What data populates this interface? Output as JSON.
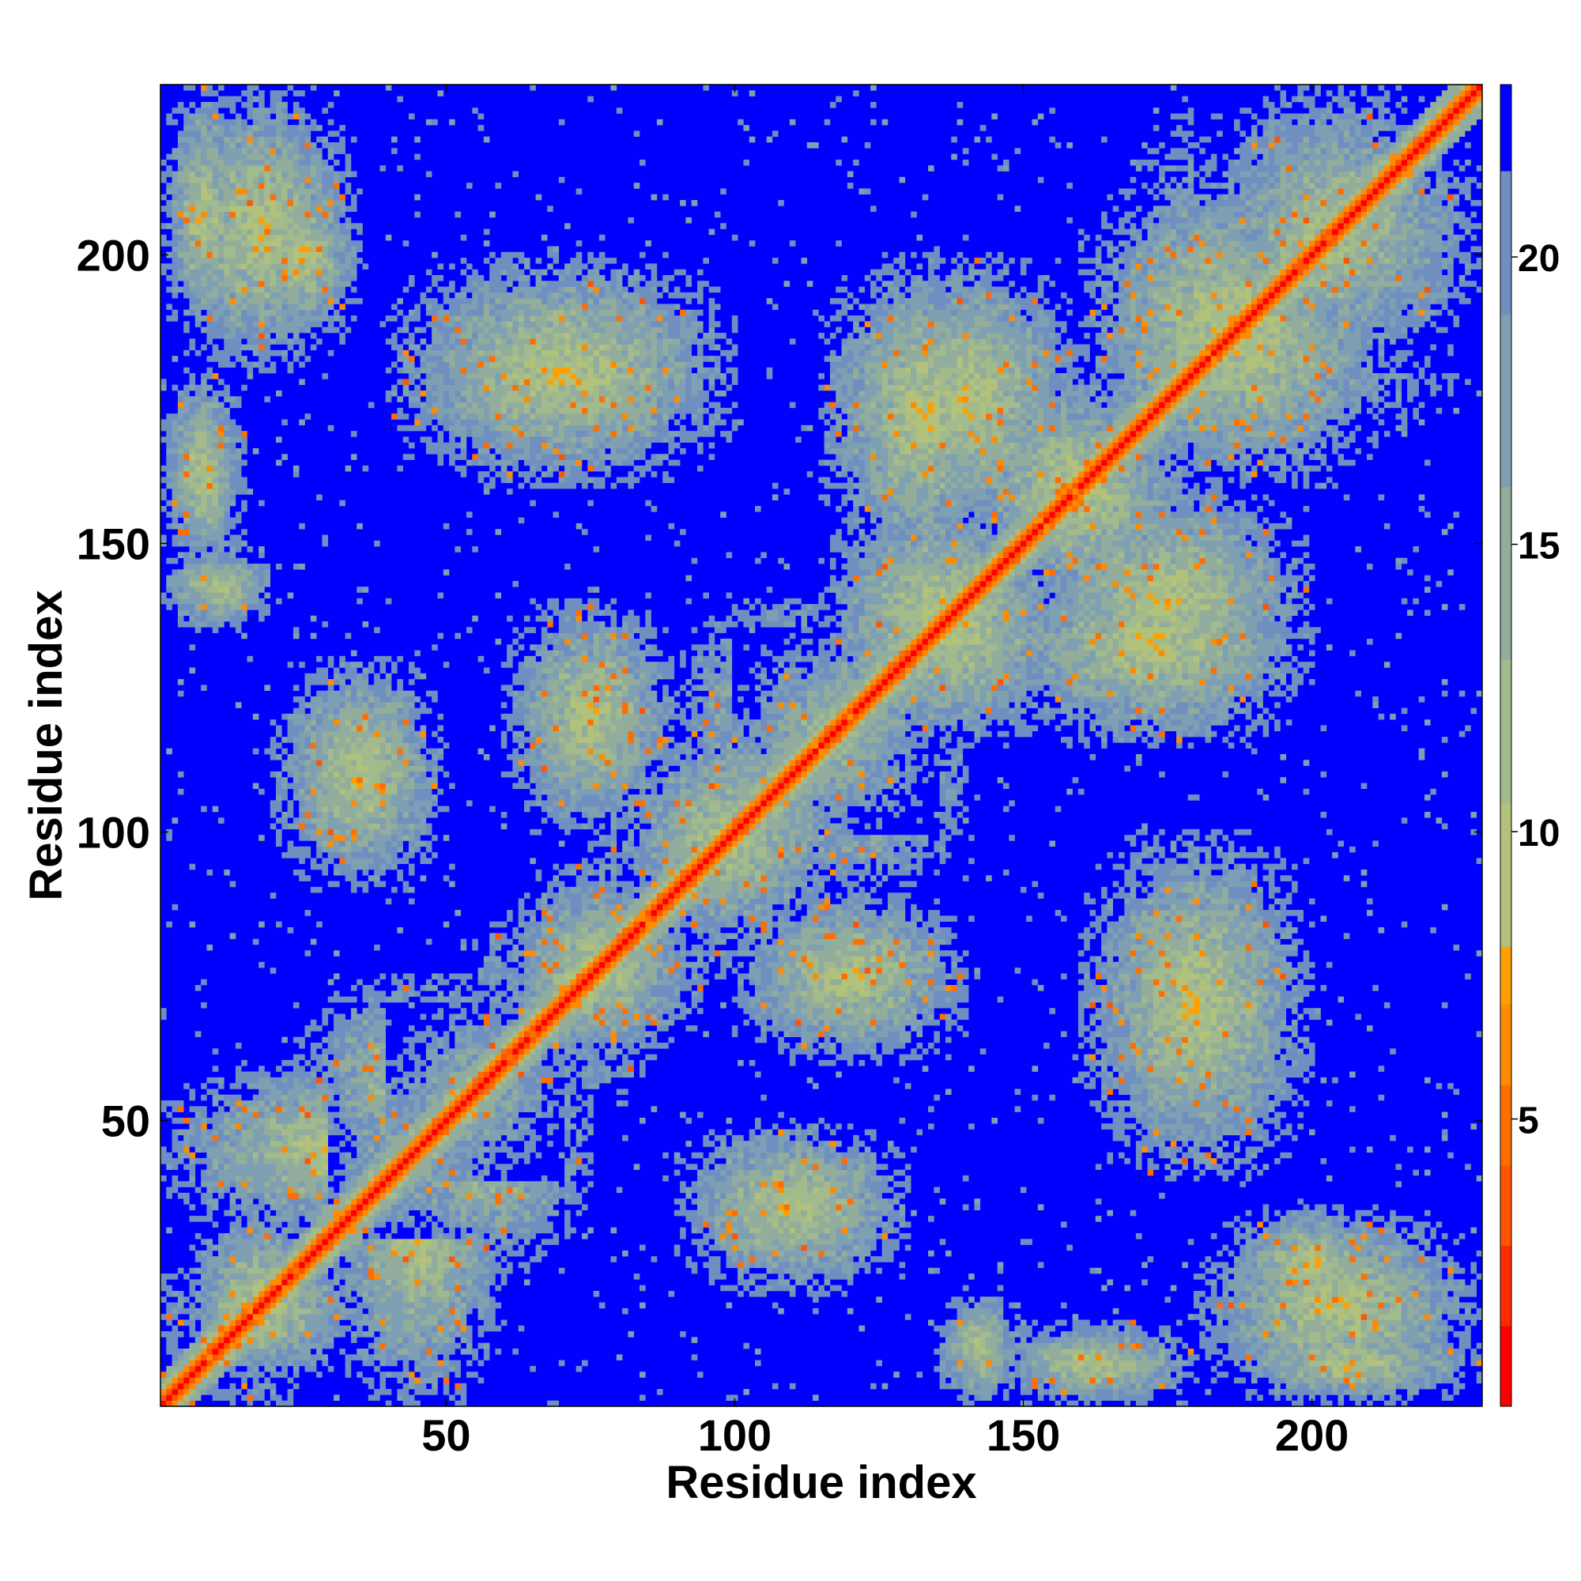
{
  "chart_data": {
    "type": "heatmap",
    "title": "",
    "xlabel": "Residue index",
    "ylabel": "Residue index",
    "n_residues": 229,
    "xlim": [
      1,
      229
    ],
    "ylim": [
      1,
      229
    ],
    "x_ticks": [
      "50",
      "100",
      "150",
      "200"
    ],
    "x_tick_values": [
      50,
      100,
      150,
      200
    ],
    "y_ticks": [
      "50",
      "100",
      "150",
      "200"
    ],
    "y_tick_values": [
      50,
      100,
      150,
      200
    ],
    "colorbar": {
      "ticks": [
        "5",
        "10",
        "15",
        "20"
      ],
      "tick_values": [
        5,
        10,
        15,
        20
      ],
      "range": [
        0,
        23
      ],
      "levels": [
        {
          "min": 0,
          "max": 1.4,
          "color": "#ff0000"
        },
        {
          "min": 1.4,
          "max": 2.8,
          "color": "#ff2a00"
        },
        {
          "min": 2.8,
          "max": 4.2,
          "color": "#ff5500"
        },
        {
          "min": 4.2,
          "max": 5.6,
          "color": "#ff6e00"
        },
        {
          "min": 5.6,
          "max": 7.0,
          "color": "#ff8c00"
        },
        {
          "min": 7.0,
          "max": 8.0,
          "color": "#ffa000"
        },
        {
          "min": 8.0,
          "max": 10.5,
          "color": "#b3c27a"
        },
        {
          "min": 10.5,
          "max": 13.0,
          "color": "#a3bb8c"
        },
        {
          "min": 13.0,
          "max": 16.0,
          "color": "#92ad9c"
        },
        {
          "min": 16.0,
          "max": 19.0,
          "color": "#7f9fb2"
        },
        {
          "min": 19.0,
          "max": 21.5,
          "color": "#6f8fc0"
        },
        {
          "min": 21.5,
          "max": 23.0,
          "color": "#0000ff"
        }
      ],
      "cutoff_color": "#0000ff"
    },
    "description_of_values": "Pairwise residue distance map (symmetric); diagonal distance ~0; blue = beyond cutoff",
    "contact_blocks": [
      {
        "i": [
          1,
          15
        ],
        "j": [
          185,
          229
        ]
      },
      {
        "i": [
          15,
          35
        ],
        "j": [
          185,
          215
        ]
      },
      {
        "i": [
          1,
          15
        ],
        "j": [
          145,
          180
        ]
      },
      {
        "i": [
          30,
          60
        ],
        "j": [
          1,
          60
        ]
      },
      {
        "i": [
          5,
          30
        ],
        "j": [
          1,
          35
        ]
      },
      {
        "i": [
          60,
          90
        ],
        "j": [
          55,
          95
        ]
      },
      {
        "i": [
          40,
          75
        ],
        "j": [
          25,
          70
        ]
      },
      {
        "i": [
          80,
          120
        ],
        "j": [
          75,
          120
        ]
      },
      {
        "i": [
          100,
          140
        ],
        "j": [
          90,
          135
        ]
      },
      {
        "i": [
          115,
          155
        ],
        "j": [
          115,
          160
        ]
      },
      {
        "i": [
          140,
          175
        ],
        "j": [
          140,
          180
        ]
      },
      {
        "i": [
          160,
          210
        ],
        "j": [
          160,
          215
        ]
      },
      {
        "i": [
          180,
          229
        ],
        "j": [
          170,
          229
        ]
      },
      {
        "i": [
          145,
          200
        ],
        "j": [
          115,
          150
        ]
      },
      {
        "i": [
          180,
          229
        ],
        "j": [
          1,
          35
        ]
      },
      {
        "i": [
          135,
          150
        ],
        "j": [
          1,
          20
        ]
      },
      {
        "i": [
          120,
          160
        ],
        "j": [
          150,
          200
        ]
      },
      {
        "i": [
          100,
          140
        ],
        "j": [
          60,
          90
        ]
      },
      {
        "i": [
          20,
          50
        ],
        "j": [
          90,
          130
        ]
      },
      {
        "i": [
          40,
          100
        ],
        "j": [
          160,
          200
        ]
      }
    ]
  }
}
